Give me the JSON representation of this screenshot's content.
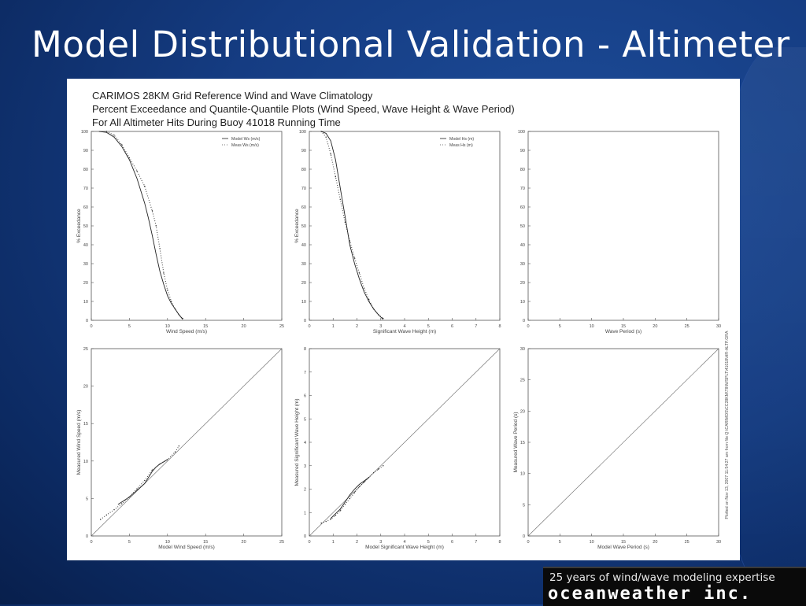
{
  "slide": {
    "title": "Model Distributional Validation - Altimeter"
  },
  "figure": {
    "header_lines": [
      "CARIMOS 28KM Grid Reference Wind and Wave Climatology",
      "Percent Exceedance and Quantile-Quantile Plots (Wind Speed, Wave Height & Wave Period)",
      "For All Altimeter Hits During Buoy 41018 Running Time"
    ],
    "side_note": "Plotted on Nov 13, 2007  11:54:27 am from file Q:\\CARIMOS\\CC28KM\\TINWSPLT\\41018\\HR-ALTP.GRA"
  },
  "chart_data": [
    {
      "type": "line",
      "id": "wind-exceedance",
      "xlabel": "Wind Speed (m/s)",
      "ylabel": "% Exceedance",
      "xlim": [
        0,
        25
      ],
      "ylim": [
        0,
        100
      ],
      "xticks": [
        0,
        5,
        10,
        15,
        20,
        25
      ],
      "yticks": [
        0,
        10,
        20,
        30,
        40,
        50,
        60,
        70,
        80,
        90,
        100
      ],
      "legend": "top-right",
      "series": [
        {
          "name": "Model Ws (m/s)",
          "style": "solid",
          "x": [
            1.0,
            2.0,
            3.0,
            4.0,
            5.0,
            6.0,
            7.0,
            7.5,
            8.0,
            8.5,
            9.0,
            9.5,
            10.0,
            10.5,
            11.0,
            11.5,
            12.0
          ],
          "y": [
            100,
            99.5,
            97,
            92,
            85,
            75,
            62,
            54,
            45,
            35,
            26,
            19,
            13,
            9,
            6,
            3,
            0.5
          ]
        },
        {
          "name": "Meas Ws (m/s)",
          "style": "dotted",
          "x": [
            2.0,
            3.0,
            4.0,
            5.0,
            6.0,
            7.0,
            8.0,
            8.5,
            9.0,
            9.5,
            10.0,
            10.5,
            11.0,
            11.5,
            12.0
          ],
          "y": [
            100,
            98,
            93,
            86,
            79,
            71,
            58,
            50,
            38,
            25,
            16,
            10,
            6,
            3,
            1
          ]
        }
      ]
    },
    {
      "type": "line",
      "id": "hs-exceedance",
      "xlabel": "Significant Wave Height (m)",
      "ylabel": "% Exceedance",
      "xlim": [
        0,
        8
      ],
      "ylim": [
        0,
        100
      ],
      "xticks": [
        0,
        1,
        2,
        3,
        4,
        5,
        6,
        7,
        8
      ],
      "yticks": [
        0,
        10,
        20,
        30,
        40,
        50,
        60,
        70,
        80,
        90,
        100
      ],
      "legend": "top-right",
      "series": [
        {
          "name": "Model Hs (m)",
          "style": "solid",
          "x": [
            0.5,
            0.7,
            0.9,
            1.1,
            1.3,
            1.5,
            1.7,
            1.9,
            2.1,
            2.3,
            2.5,
            2.7,
            2.9,
            3.1
          ],
          "y": [
            100,
            99,
            95,
            85,
            70,
            55,
            40,
            30,
            22,
            15,
            10,
            6,
            3,
            0.5
          ]
        },
        {
          "name": "Meas Hs (m)",
          "style": "dotted",
          "x": [
            0.5,
            0.7,
            0.9,
            1.1,
            1.3,
            1.5,
            1.7,
            1.9,
            2.1,
            2.3,
            2.5,
            2.7,
            2.9,
            3.1
          ],
          "y": [
            100,
            97,
            88,
            76,
            64,
            52,
            42,
            33,
            25,
            17,
            11,
            6,
            3,
            1
          ]
        }
      ]
    },
    {
      "type": "line",
      "id": "tp-exceedance",
      "xlabel": "Wave Period (s)",
      "ylabel": "",
      "xlim": [
        0,
        30
      ],
      "ylim": [
        0,
        100
      ],
      "xticks": [
        0,
        5,
        10,
        15,
        20,
        25,
        30
      ],
      "yticks": [
        0,
        10,
        20,
        30,
        40,
        50,
        60,
        70,
        80,
        90,
        100
      ],
      "series": []
    },
    {
      "type": "scatter",
      "id": "wind-qq",
      "xlabel": "Model Wind Speed (m/s)",
      "ylabel": "Measured Wind Speed (m/s)",
      "xlim": [
        0,
        25
      ],
      "ylim": [
        0,
        25
      ],
      "xticks": [
        0,
        5,
        10,
        15,
        20,
        25
      ],
      "yticks": [
        0,
        5,
        10,
        15,
        20,
        25
      ],
      "reference_line": true,
      "series": [
        {
          "style": "dotted",
          "x": [
            1.2,
            2.0,
            3.0,
            4.0,
            5.0,
            6.0,
            7.0,
            8.0,
            9.0,
            10.0,
            11.0,
            11.5
          ],
          "y": [
            2.2,
            2.8,
            3.5,
            4.3,
            5.2,
            6.3,
            7.4,
            8.8,
            9.6,
            10.2,
            11.2,
            12.0
          ]
        },
        {
          "style": "solid",
          "x": [
            3.5,
            5.0,
            6.0,
            7.0,
            7.5,
            8.0,
            8.5,
            9.0,
            9.5,
            10.0
          ],
          "y": [
            4.2,
            5.2,
            6.1,
            7.0,
            7.8,
            8.6,
            9.2,
            9.6,
            9.9,
            10.2
          ]
        }
      ]
    },
    {
      "type": "scatter",
      "id": "hs-qq",
      "xlabel": "Model Significant Wave Height (m)",
      "ylabel": "Measured Significant Wave Height (m)",
      "xlim": [
        0,
        8
      ],
      "ylim": [
        0,
        8
      ],
      "xticks": [
        0,
        1,
        2,
        3,
        4,
        5,
        6,
        7,
        8
      ],
      "yticks": [
        0,
        1,
        2,
        3,
        4,
        5,
        6,
        7,
        8
      ],
      "reference_line": true,
      "series": [
        {
          "style": "dotted",
          "x": [
            0.5,
            0.7,
            0.9,
            1.1,
            1.3,
            1.5,
            1.7,
            1.9,
            2.1,
            2.3,
            2.5,
            2.7,
            2.9,
            3.1
          ],
          "y": [
            0.55,
            0.62,
            0.72,
            0.88,
            1.08,
            1.35,
            1.6,
            1.85,
            2.1,
            2.3,
            2.5,
            2.7,
            2.85,
            3.0
          ]
        },
        {
          "style": "solid",
          "x": [
            0.9,
            1.1,
            1.3,
            1.5,
            1.7,
            1.9,
            2.1,
            2.3,
            2.5
          ],
          "y": [
            0.75,
            0.95,
            1.15,
            1.45,
            1.75,
            2.0,
            2.2,
            2.35,
            2.5
          ]
        }
      ]
    },
    {
      "type": "scatter",
      "id": "tp-qq",
      "xlabel": "Model Wave Period (s)",
      "ylabel": "Measured Wave Period (s)",
      "xlim": [
        0,
        30
      ],
      "ylim": [
        0,
        30
      ],
      "xticks": [
        0,
        5,
        10,
        15,
        20,
        25,
        30
      ],
      "yticks": [
        0,
        5,
        10,
        15,
        20,
        25,
        30
      ],
      "reference_line": true,
      "series": []
    }
  ],
  "logo": {
    "tagline": "25 years of wind/wave modeling expertise",
    "brand": "oceanweather inc."
  }
}
